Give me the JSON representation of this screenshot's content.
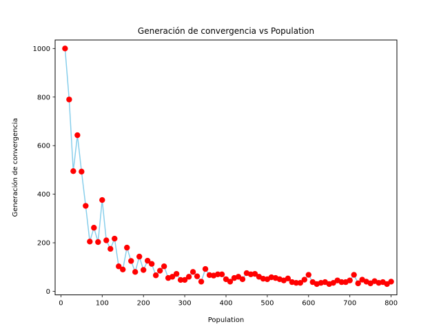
{
  "chart_data": {
    "type": "scatter",
    "title": "Generación de convergencia vs Population",
    "xlabel": "Population",
    "ylabel": "Generación de convergencia",
    "xlim": [
      -14,
      814
    ],
    "ylim": [
      -14.5,
      1035
    ],
    "xticks": [
      0,
      100,
      200,
      300,
      400,
      500,
      600,
      700,
      800
    ],
    "yticks": [
      0,
      200,
      400,
      600,
      800,
      1000
    ],
    "grid": false,
    "legend": "none",
    "colors": {
      "line": "#87ceeb",
      "marker": "#ff0000",
      "axes": "#000000"
    },
    "series": [
      {
        "line": true,
        "markers": true,
        "x": [
          10,
          20,
          30,
          40,
          50,
          60,
          70,
          80,
          90,
          100,
          110,
          120,
          130,
          140,
          150,
          160,
          170,
          180,
          190,
          200,
          210,
          220,
          230,
          240,
          250,
          260,
          270,
          280,
          290,
          300,
          310,
          320,
          330,
          340,
          350,
          360,
          370,
          380,
          390,
          400,
          410,
          420,
          430,
          440,
          450,
          460,
          470,
          480,
          490,
          500,
          510,
          520,
          530,
          540,
          550,
          560,
          570,
          580,
          590,
          600,
          610,
          620,
          630,
          640,
          650,
          660,
          670,
          680,
          690,
          700,
          710,
          720,
          730,
          740,
          750,
          760,
          770,
          780,
          790,
          800
        ],
        "y": [
          1000,
          790,
          495,
          643,
          493,
          352,
          205,
          262,
          203,
          376,
          210,
          175,
          217,
          103,
          90,
          180,
          125,
          80,
          143,
          88,
          126,
          113,
          66,
          85,
          103,
          55,
          60,
          72,
          47,
          47,
          60,
          80,
          62,
          40,
          92,
          67,
          65,
          70,
          70,
          50,
          40,
          55,
          60,
          50,
          75,
          70,
          72,
          60,
          52,
          50,
          58,
          55,
          50,
          45,
          53,
          38,
          35,
          35,
          48,
          68,
          38,
          30,
          35,
          38,
          30,
          35,
          45,
          38,
          38,
          45,
          68,
          33,
          48,
          40,
          33,
          42,
          35,
          38,
          30,
          40
        ]
      }
    ]
  }
}
